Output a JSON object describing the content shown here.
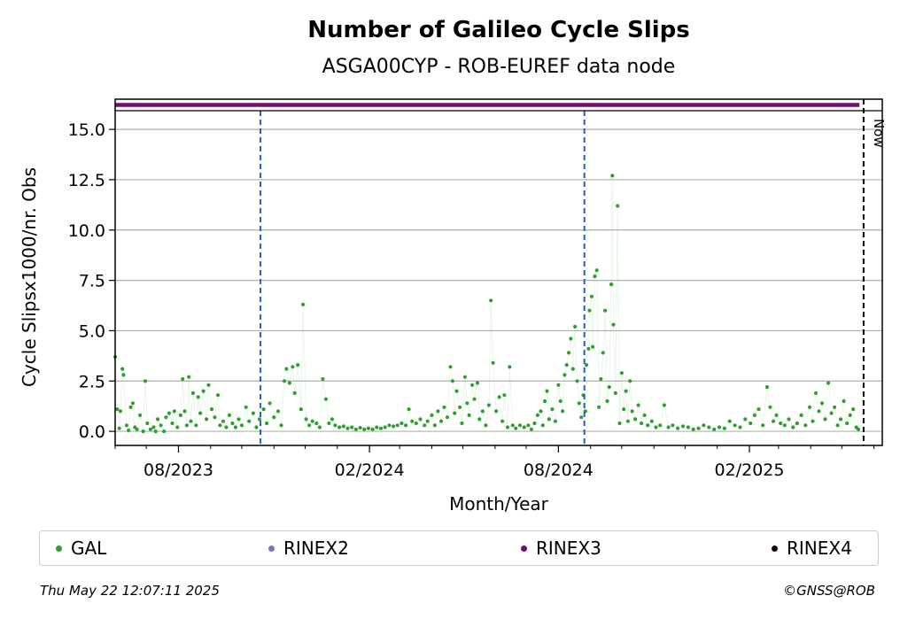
{
  "chart_data": {
    "type": "scatter",
    "title": "Number of Galileo Cycle Slips",
    "subtitle": "ASGA00CYP - ROB-EUREF data node",
    "xlabel": "Month/Year",
    "ylabel": "Cycle Slipsx1000/nr. Obs",
    "x_range": [
      "2023-06-01",
      "2025-06-09"
    ],
    "ylim": [
      -0.7,
      16.5
    ],
    "y_ticks": [
      0.0,
      2.5,
      5.0,
      7.5,
      10.0,
      12.5,
      15.0
    ],
    "y_tick_labels": [
      "0.0",
      "2.5",
      "5.0",
      "7.5",
      "10.0",
      "12.5",
      "15.0"
    ],
    "x_ticks": [
      {
        "date": "2023-08-01",
        "label": "08/2023"
      },
      {
        "date": "2024-02-01",
        "label": "02/2024"
      },
      {
        "date": "2024-08-01",
        "label": "08/2024"
      },
      {
        "date": "2025-02-01",
        "label": "02/2025"
      }
    ],
    "grid": "horizontal",
    "legend_placement": "below",
    "vertical_markers": [
      {
        "date": "2023-10-19",
        "style": "dashed",
        "color": "#1f5fbf"
      },
      {
        "date": "2024-08-26",
        "style": "dashed",
        "color": "#1f5fbf"
      }
    ],
    "now_marker": {
      "date": "2025-05-22",
      "label": "Now",
      "color": "#000000"
    },
    "rinex3_band": {
      "start": "2023-06-01",
      "end": "2025-05-18",
      "color": "#6b0f6b"
    },
    "series": [
      {
        "name": "GAL",
        "color": "#2ca02c",
        "points": [
          [
            "2023-06-01",
            3.7
          ],
          [
            "2023-06-03",
            1.1
          ],
          [
            "2023-06-05",
            0.15
          ],
          [
            "2023-06-06",
            1.0
          ],
          [
            "2023-06-08",
            3.1
          ],
          [
            "2023-06-09",
            2.8
          ],
          [
            "2023-06-12",
            0.3
          ],
          [
            "2023-06-14",
            0.05
          ],
          [
            "2023-06-16",
            1.2
          ],
          [
            "2023-06-18",
            1.4
          ],
          [
            "2023-06-20",
            0.2
          ],
          [
            "2023-06-22",
            0.1
          ],
          [
            "2023-06-25",
            0.8
          ],
          [
            "2023-06-28",
            0.0
          ],
          [
            "2023-06-30",
            2.5
          ],
          [
            "2023-07-02",
            0.4
          ],
          [
            "2023-07-05",
            0.1
          ],
          [
            "2023-07-08",
            0.2
          ],
          [
            "2023-07-10",
            0.0
          ],
          [
            "2023-07-12",
            0.6
          ],
          [
            "2023-07-15",
            0.3
          ],
          [
            "2023-07-18",
            0.0
          ],
          [
            "2023-07-20",
            0.7
          ],
          [
            "2023-07-23",
            0.9
          ],
          [
            "2023-07-26",
            0.4
          ],
          [
            "2023-07-28",
            1.0
          ],
          [
            "2023-07-31",
            0.2
          ],
          [
            "2023-08-03",
            0.8
          ],
          [
            "2023-08-05",
            2.6
          ],
          [
            "2023-08-07",
            1.0
          ],
          [
            "2023-08-09",
            0.3
          ],
          [
            "2023-08-11",
            2.7
          ],
          [
            "2023-08-13",
            0.5
          ],
          [
            "2023-08-15",
            1.9
          ],
          [
            "2023-08-18",
            0.3
          ],
          [
            "2023-08-20",
            1.7
          ],
          [
            "2023-08-22",
            0.9
          ],
          [
            "2023-08-25",
            2.0
          ],
          [
            "2023-08-28",
            0.6
          ],
          [
            "2023-08-30",
            2.3
          ],
          [
            "2023-09-02",
            1.1
          ],
          [
            "2023-09-05",
            0.7
          ],
          [
            "2023-09-08",
            1.8
          ],
          [
            "2023-09-10",
            0.3
          ],
          [
            "2023-09-13",
            0.5
          ],
          [
            "2023-09-16",
            0.2
          ],
          [
            "2023-09-19",
            0.8
          ],
          [
            "2023-09-22",
            0.4
          ],
          [
            "2023-09-25",
            0.2
          ],
          [
            "2023-09-28",
            0.6
          ],
          [
            "2023-10-01",
            0.3
          ],
          [
            "2023-10-05",
            1.2
          ],
          [
            "2023-10-08",
            0.5
          ],
          [
            "2023-10-12",
            0.9
          ],
          [
            "2023-10-15",
            0.2
          ],
          [
            "2023-10-18",
            0.6
          ],
          [
            "2023-10-22",
            1.1
          ],
          [
            "2023-10-25",
            0.4
          ],
          [
            "2023-10-28",
            1.4
          ],
          [
            "2023-11-01",
            0.7
          ],
          [
            "2023-11-05",
            1.0
          ],
          [
            "2023-11-08",
            0.3
          ],
          [
            "2023-11-11",
            2.5
          ],
          [
            "2023-11-13",
            3.1
          ],
          [
            "2023-11-16",
            2.4
          ],
          [
            "2023-11-19",
            3.2
          ],
          [
            "2023-11-21",
            1.9
          ],
          [
            "2023-11-24",
            3.3
          ],
          [
            "2023-11-27",
            1.1
          ],
          [
            "2023-11-29",
            6.3
          ],
          [
            "2023-12-02",
            0.6
          ],
          [
            "2023-12-05",
            0.3
          ],
          [
            "2023-12-08",
            0.5
          ],
          [
            "2023-12-12",
            0.4
          ],
          [
            "2023-12-15",
            0.2
          ],
          [
            "2023-12-18",
            2.6
          ],
          [
            "2023-12-21",
            1.6
          ],
          [
            "2023-12-24",
            0.4
          ],
          [
            "2023-12-27",
            0.6
          ],
          [
            "2023-12-30",
            0.3
          ],
          [
            "2024-01-03",
            0.2
          ],
          [
            "2024-01-07",
            0.25
          ],
          [
            "2024-01-11",
            0.15
          ],
          [
            "2024-01-15",
            0.2
          ],
          [
            "2024-01-19",
            0.1
          ],
          [
            "2024-01-23",
            0.18
          ],
          [
            "2024-01-27",
            0.1
          ],
          [
            "2024-01-31",
            0.15
          ],
          [
            "2024-02-04",
            0.1
          ],
          [
            "2024-02-08",
            0.2
          ],
          [
            "2024-02-12",
            0.15
          ],
          [
            "2024-02-16",
            0.2
          ],
          [
            "2024-02-20",
            0.3
          ],
          [
            "2024-02-24",
            0.25
          ],
          [
            "2024-02-28",
            0.3
          ],
          [
            "2024-03-03",
            0.4
          ],
          [
            "2024-03-07",
            0.3
          ],
          [
            "2024-03-10",
            1.1
          ],
          [
            "2024-03-13",
            0.5
          ],
          [
            "2024-03-17",
            0.4
          ],
          [
            "2024-03-21",
            0.6
          ],
          [
            "2024-03-25",
            0.3
          ],
          [
            "2024-03-28",
            0.5
          ],
          [
            "2024-04-01",
            0.8
          ],
          [
            "2024-04-04",
            0.3
          ],
          [
            "2024-04-07",
            1.0
          ],
          [
            "2024-04-10",
            0.5
          ],
          [
            "2024-04-13",
            1.2
          ],
          [
            "2024-04-16",
            0.7
          ],
          [
            "2024-04-19",
            3.2
          ],
          [
            "2024-04-21",
            2.5
          ],
          [
            "2024-04-23",
            0.9
          ],
          [
            "2024-04-25",
            2.0
          ],
          [
            "2024-04-28",
            1.2
          ],
          [
            "2024-04-30",
            0.4
          ],
          [
            "2024-05-03",
            2.7
          ],
          [
            "2024-05-05",
            1.4
          ],
          [
            "2024-05-07",
            0.8
          ],
          [
            "2024-05-10",
            2.3
          ],
          [
            "2024-05-12",
            1.6
          ],
          [
            "2024-05-15",
            2.4
          ],
          [
            "2024-05-17",
            0.6
          ],
          [
            "2024-05-20",
            1.0
          ],
          [
            "2024-05-23",
            0.3
          ],
          [
            "2024-05-26",
            1.3
          ],
          [
            "2024-05-28",
            6.5
          ],
          [
            "2024-05-30",
            3.4
          ],
          [
            "2024-06-02",
            1.0
          ],
          [
            "2024-06-05",
            1.7
          ],
          [
            "2024-06-08",
            0.5
          ],
          [
            "2024-06-10",
            1.8
          ],
          [
            "2024-06-13",
            0.2
          ],
          [
            "2024-06-15",
            3.2
          ],
          [
            "2024-06-18",
            0.3
          ],
          [
            "2024-06-21",
            0.15
          ],
          [
            "2024-06-25",
            0.3
          ],
          [
            "2024-06-29",
            0.2
          ],
          [
            "2024-07-03",
            0.3
          ],
          [
            "2024-07-06",
            0.1
          ],
          [
            "2024-07-09",
            0.4
          ],
          [
            "2024-07-12",
            0.8
          ],
          [
            "2024-07-15",
            1.0
          ],
          [
            "2024-07-17",
            0.3
          ],
          [
            "2024-07-19",
            1.5
          ],
          [
            "2024-07-21",
            2.0
          ],
          [
            "2024-07-23",
            0.6
          ],
          [
            "2024-07-26",
            1.1
          ],
          [
            "2024-07-29",
            0.5
          ],
          [
            "2024-08-01",
            2.3
          ],
          [
            "2024-08-03",
            1.5
          ],
          [
            "2024-08-05",
            1.0
          ],
          [
            "2024-08-07",
            2.8
          ],
          [
            "2024-08-09",
            3.3
          ],
          [
            "2024-08-11",
            3.9
          ],
          [
            "2024-08-13",
            4.6
          ],
          [
            "2024-08-15",
            3.1
          ],
          [
            "2024-08-17",
            5.2
          ],
          [
            "2024-08-19",
            2.5
          ],
          [
            "2024-08-21",
            1.4
          ],
          [
            "2024-08-23",
            0.7
          ],
          [
            "2024-08-25",
            1.8
          ],
          [
            "2024-08-27",
            1.0
          ],
          [
            "2024-08-28",
            3.3
          ],
          [
            "2024-08-30",
            4.1
          ],
          [
            "2024-08-31",
            6.0
          ],
          [
            "2024-09-02",
            6.7
          ],
          [
            "2024-09-03",
            4.2
          ],
          [
            "2024-09-05",
            7.7
          ],
          [
            "2024-09-07",
            8.0
          ],
          [
            "2024-09-09",
            1.2
          ],
          [
            "2024-09-11",
            2.6
          ],
          [
            "2024-09-13",
            3.9
          ],
          [
            "2024-09-15",
            6.0
          ],
          [
            "2024-09-17",
            1.5
          ],
          [
            "2024-09-19",
            2.2
          ],
          [
            "2024-09-21",
            7.3
          ],
          [
            "2024-09-22",
            12.7
          ],
          [
            "2024-09-23",
            5.3
          ],
          [
            "2024-09-25",
            1.9
          ],
          [
            "2024-09-27",
            11.2
          ],
          [
            "2024-09-29",
            0.4
          ],
          [
            "2024-10-01",
            2.9
          ],
          [
            "2024-10-03",
            1.1
          ],
          [
            "2024-10-05",
            2.0
          ],
          [
            "2024-10-07",
            0.5
          ],
          [
            "2024-10-09",
            2.5
          ],
          [
            "2024-10-11",
            1.0
          ],
          [
            "2024-10-14",
            0.6
          ],
          [
            "2024-10-17",
            1.3
          ],
          [
            "2024-10-20",
            0.4
          ],
          [
            "2024-10-23",
            0.8
          ],
          [
            "2024-10-26",
            0.3
          ],
          [
            "2024-10-30",
            0.5
          ],
          [
            "2024-11-03",
            0.2
          ],
          [
            "2024-11-07",
            0.3
          ],
          [
            "2024-11-11",
            1.3
          ],
          [
            "2024-11-15",
            0.2
          ],
          [
            "2024-11-19",
            0.3
          ],
          [
            "2024-11-24",
            0.15
          ],
          [
            "2024-11-29",
            0.25
          ],
          [
            "2024-12-04",
            0.2
          ],
          [
            "2024-12-09",
            0.1
          ],
          [
            "2024-12-14",
            0.15
          ],
          [
            "2024-12-19",
            0.3
          ],
          [
            "2024-12-24",
            0.2
          ],
          [
            "2024-12-29",
            0.1
          ],
          [
            "2025-01-03",
            0.2
          ],
          [
            "2025-01-08",
            0.15
          ],
          [
            "2025-01-13",
            0.5
          ],
          [
            "2025-01-18",
            0.3
          ],
          [
            "2025-01-23",
            0.2
          ],
          [
            "2025-01-28",
            0.6
          ],
          [
            "2025-02-02",
            0.4
          ],
          [
            "2025-02-06",
            0.8
          ],
          [
            "2025-02-10",
            1.1
          ],
          [
            "2025-02-14",
            0.3
          ],
          [
            "2025-02-18",
            2.2
          ],
          [
            "2025-02-21",
            1.2
          ],
          [
            "2025-02-24",
            0.5
          ],
          [
            "2025-02-27",
            0.8
          ],
          [
            "2025-03-03",
            0.4
          ],
          [
            "2025-03-07",
            0.3
          ],
          [
            "2025-03-11",
            0.6
          ],
          [
            "2025-03-15",
            0.2
          ],
          [
            "2025-03-19",
            0.4
          ],
          [
            "2025-03-23",
            0.8
          ],
          [
            "2025-03-27",
            0.3
          ],
          [
            "2025-03-31",
            1.2
          ],
          [
            "2025-04-03",
            0.5
          ],
          [
            "2025-04-06",
            1.9
          ],
          [
            "2025-04-09",
            1.0
          ],
          [
            "2025-04-12",
            1.4
          ],
          [
            "2025-04-15",
            0.6
          ],
          [
            "2025-04-18",
            2.4
          ],
          [
            "2025-04-21",
            0.9
          ],
          [
            "2025-04-24",
            1.2
          ],
          [
            "2025-04-27",
            0.3
          ],
          [
            "2025-04-30",
            0.6
          ],
          [
            "2025-05-03",
            1.5
          ],
          [
            "2025-05-06",
            0.4
          ],
          [
            "2025-05-09",
            0.8
          ],
          [
            "2025-05-12",
            1.1
          ],
          [
            "2025-05-15",
            0.2
          ],
          [
            "2025-05-17",
            0.1
          ]
        ]
      }
    ],
    "legend": [
      {
        "label": "GAL",
        "color": "#2ca02c"
      },
      {
        "label": "RINEX2",
        "color": "#7777bb"
      },
      {
        "label": "RINEX3",
        "color": "#6b0f6b"
      },
      {
        "label": "RINEX4",
        "color": "#1a0011"
      }
    ]
  },
  "footer": {
    "timestamp": "Thu May 22 12:07:11 2025",
    "credit": "©GNSS@ROB"
  }
}
